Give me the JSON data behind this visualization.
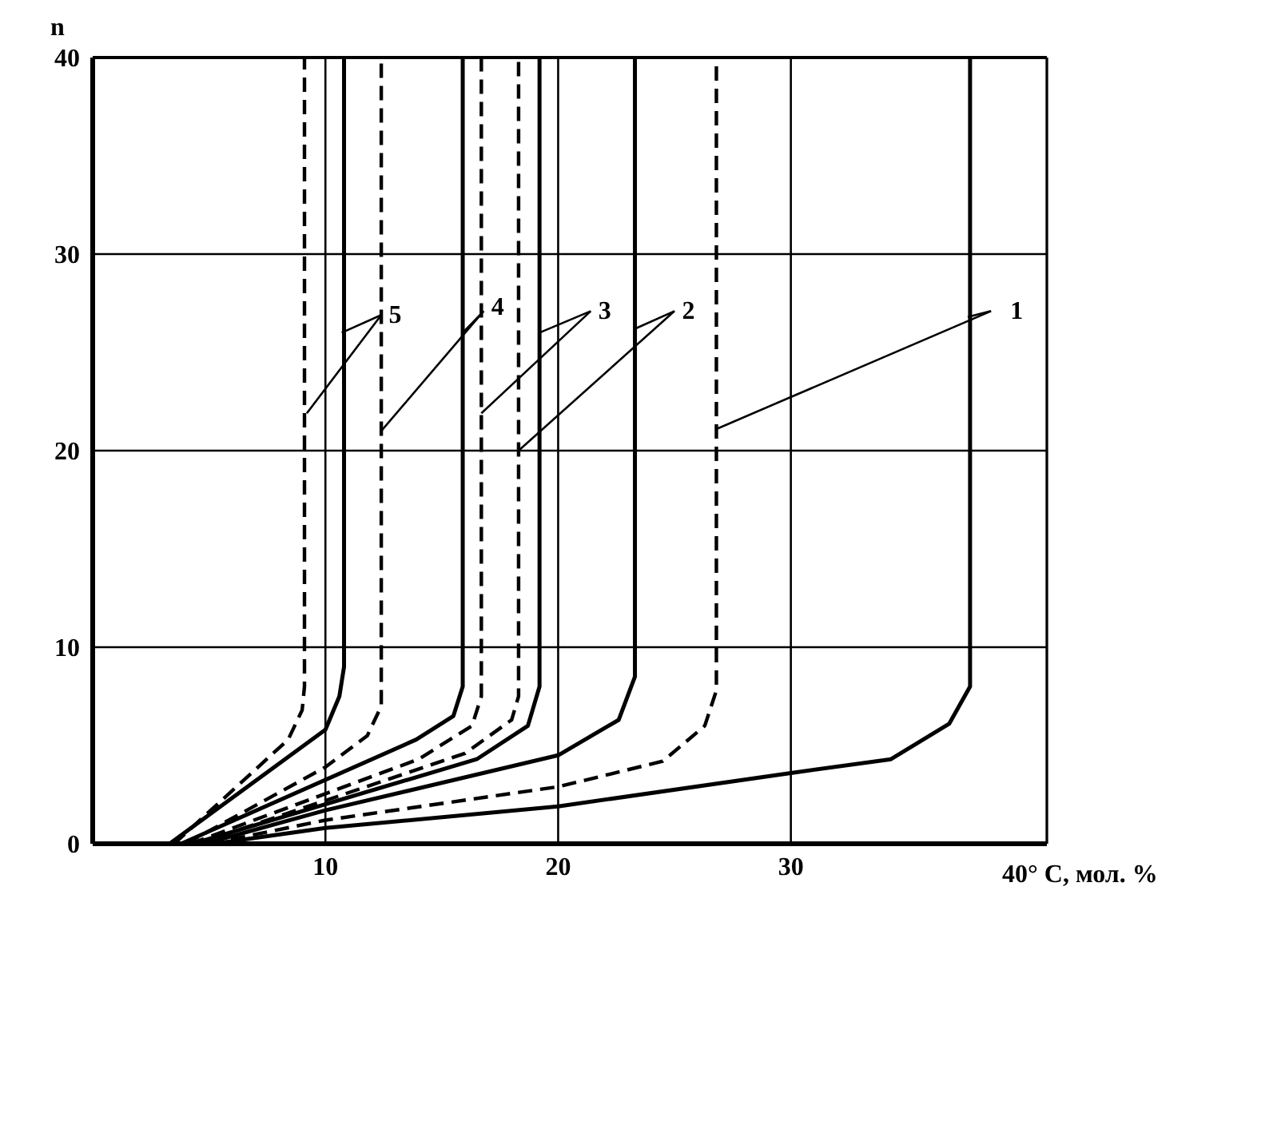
{
  "chart_data": {
    "type": "line",
    "xlabel": "40° C, мол. %",
    "ylabel": "n",
    "xlim": [
      0,
      41
    ],
    "xticks": [
      10,
      20,
      30
    ],
    "ylim": [
      0,
      40
    ],
    "yticks": [
      0,
      10,
      20,
      30,
      40
    ],
    "grid": true,
    "marker": "none",
    "annotations": [
      {
        "text": "1",
        "x": 37.6,
        "y": 26.8
      },
      {
        "text": "2",
        "x": 23.3,
        "y": 26.2
      },
      {
        "text": "3",
        "x": 19.2,
        "y": 26
      },
      {
        "text": "4",
        "x": 15.9,
        "y": 26
      },
      {
        "text": "5",
        "x": 10.7,
        "y": 26
      }
    ],
    "series": [
      {
        "color": "#000000",
        "line_style": "solid",
        "x": [
          5.2,
          10,
          20,
          30,
          34.3,
          36.8,
          37.7,
          37.7
        ],
        "values": [
          0,
          0.8,
          1.9,
          3.6,
          4.3,
          6.1,
          8,
          40
        ]
      },
      {
        "color": "#000000",
        "line_style": "dashed",
        "x": [
          5,
          10,
          20,
          24.5,
          26.3,
          26.8,
          26.8
        ],
        "values": [
          0,
          1.2,
          2.9,
          4.2,
          6,
          7.8,
          40
        ]
      },
      {
        "color": "#000000",
        "line_style": "solid",
        "x": [
          4.8,
          10,
          20,
          22.6,
          23.3,
          23.3
        ],
        "values": [
          0,
          1.7,
          4.5,
          6.3,
          8.5,
          40
        ]
      },
      {
        "color": "#000000",
        "line_style": "dashed",
        "x": [
          4.5,
          16,
          18,
          18.3,
          18.3
        ],
        "values": [
          0,
          4.6,
          6.3,
          7.5,
          40
        ]
      },
      {
        "color": "#000000",
        "line_style": "solid",
        "x": [
          4.3,
          16.5,
          18.7,
          19.2,
          19.2
        ],
        "values": [
          0,
          4.3,
          6,
          8,
          40
        ]
      },
      {
        "color": "#000000",
        "line_style": "dashed",
        "x": [
          4.2,
          14,
          16.3,
          16.7,
          16.7
        ],
        "values": [
          0,
          4.3,
          6,
          7.5,
          40
        ]
      },
      {
        "color": "#000000",
        "line_style": "solid",
        "x": [
          3.8,
          13.9,
          15.5,
          15.9,
          15.9
        ],
        "values": [
          0,
          5.3,
          6.5,
          8,
          40
        ]
      },
      {
        "color": "#000000",
        "line_style": "dashed",
        "x": [
          4,
          10,
          11.8,
          12.4,
          12.4
        ],
        "values": [
          0,
          3.9,
          5.5,
          7,
          40
        ]
      },
      {
        "color": "#000000",
        "line_style": "solid",
        "x": [
          3.3,
          10,
          10.6,
          10.8,
          10.8
        ],
        "values": [
          0,
          5.8,
          7.5,
          9,
          40
        ]
      },
      {
        "color": "#000000",
        "line_style": "dashed",
        "x": [
          3.5,
          8.4,
          9,
          9.1,
          9.1
        ],
        "values": [
          0,
          5.3,
          6.8,
          8,
          40
        ]
      }
    ]
  }
}
